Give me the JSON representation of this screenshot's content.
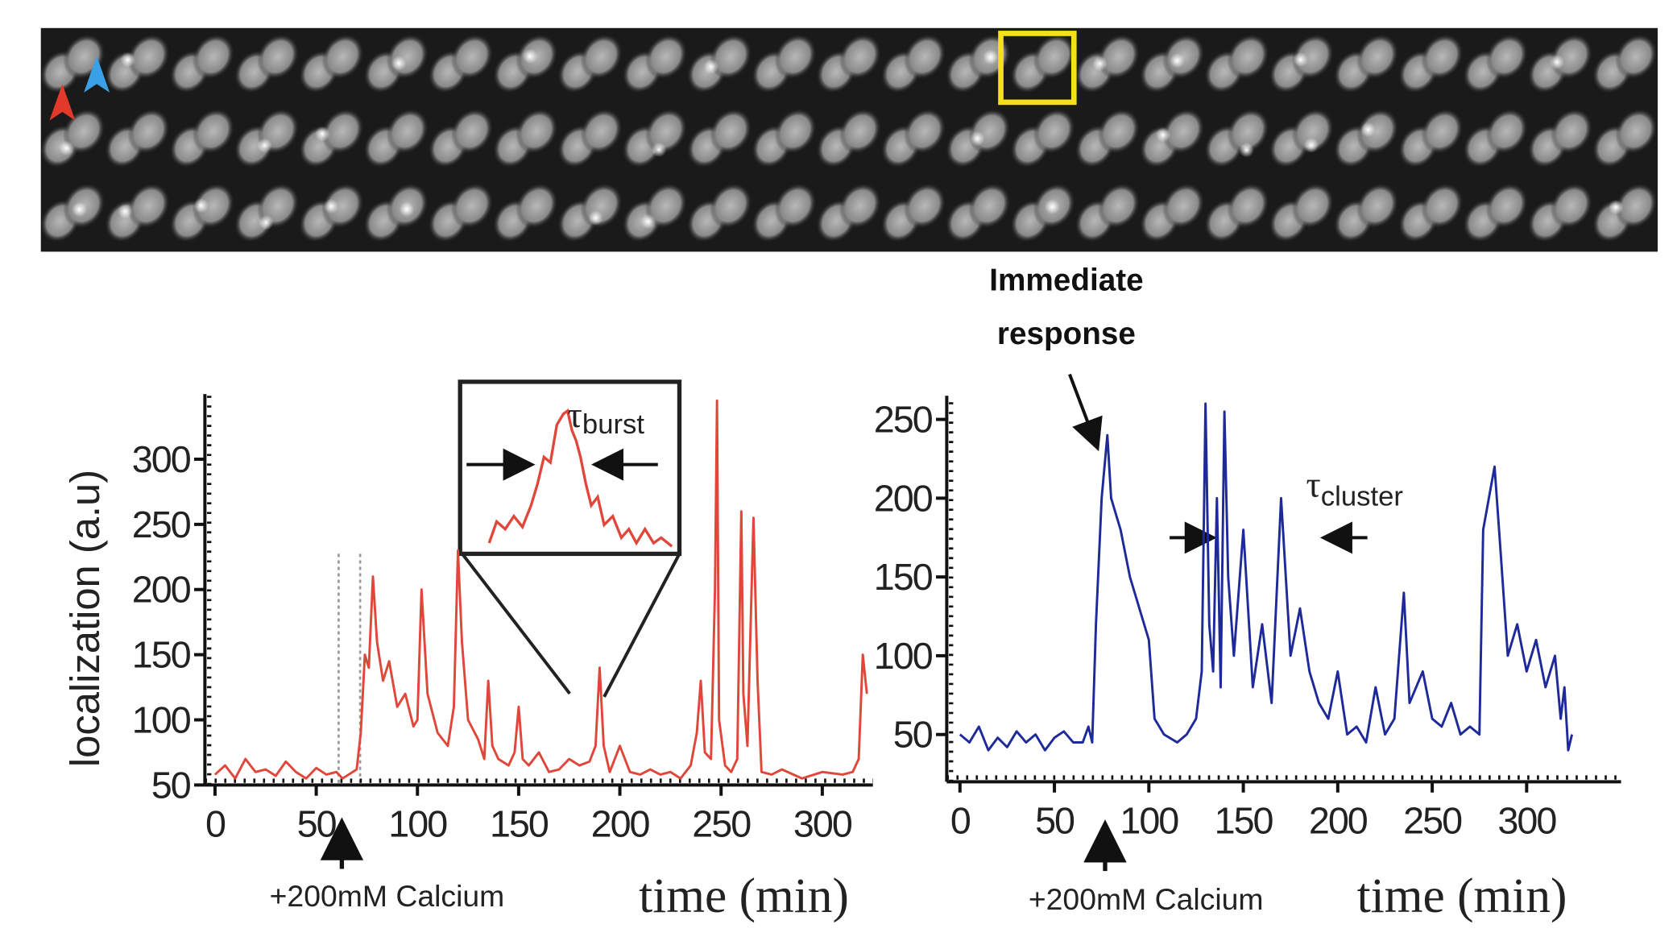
{
  "chart_data": [
    {
      "type": "line",
      "y_label": "localization (a.u)",
      "x_label": "time (min)",
      "annotation": "+200mM Calcium",
      "inset_label": {
        "symbol": "τ",
        "subscript": "burst"
      },
      "xlim": [
        -5,
        325
      ],
      "ylim": [
        50,
        350
      ],
      "xticks": [
        0,
        50,
        100,
        150,
        200,
        250,
        300
      ],
      "yticks": [
        50,
        100,
        150,
        200,
        250,
        300
      ],
      "grid": false,
      "x": [
        0,
        5,
        10,
        15,
        20,
        25,
        30,
        35,
        40,
        45,
        50,
        55,
        60,
        63,
        66,
        70,
        72,
        74,
        76,
        78,
        80,
        83,
        86,
        90,
        94,
        98,
        100,
        102,
        105,
        110,
        115,
        118,
        120,
        122,
        125,
        130,
        133,
        135,
        137,
        140,
        145,
        148,
        150,
        152,
        155,
        160,
        165,
        170,
        175,
        180,
        185,
        188,
        190,
        192,
        195,
        200,
        205,
        210,
        215,
        220,
        225,
        230,
        235,
        238,
        240,
        242,
        245,
        247,
        248,
        249,
        252,
        255,
        258,
        260,
        261,
        263,
        266,
        268,
        270,
        275,
        280,
        290,
        300,
        310,
        315,
        318,
        320,
        322
      ],
      "series": [
        {
          "color": "#e0473a",
          "values": [
            58,
            65,
            55,
            70,
            60,
            62,
            57,
            68,
            60,
            55,
            63,
            58,
            60,
            55,
            58,
            62,
            90,
            150,
            140,
            210,
            160,
            130,
            145,
            110,
            120,
            95,
            100,
            200,
            120,
            90,
            80,
            110,
            230,
            160,
            100,
            85,
            70,
            130,
            80,
            70,
            65,
            75,
            110,
            70,
            65,
            75,
            60,
            62,
            70,
            65,
            68,
            80,
            140,
            80,
            60,
            80,
            60,
            58,
            62,
            58,
            60,
            55,
            65,
            90,
            130,
            75,
            70,
            200,
            345,
            100,
            65,
            60,
            70,
            260,
            120,
            80,
            255,
            130,
            60,
            58,
            62,
            55,
            60,
            58,
            60,
            70,
            150,
            120
          ]
        }
      ]
    },
    {
      "type": "line",
      "x_label": "time (min)",
      "annotation": "+200mM Calcium",
      "callout": [
        "Immediate",
        "response"
      ],
      "inset_label": {
        "symbol": "τ",
        "subscript": "cluster"
      },
      "xlim": [
        -7,
        350
      ],
      "ylim": [
        20,
        265
      ],
      "xticks": [
        0,
        50,
        100,
        150,
        200,
        250,
        300
      ],
      "yticks": [
        50,
        100,
        150,
        200,
        250
      ],
      "grid": false,
      "x": [
        0,
        5,
        10,
        15,
        20,
        25,
        30,
        35,
        40,
        45,
        50,
        55,
        60,
        65,
        68,
        70,
        72,
        75,
        78,
        80,
        85,
        90,
        95,
        100,
        103,
        108,
        115,
        120,
        125,
        128,
        130,
        132,
        134,
        136,
        138,
        140,
        142,
        145,
        150,
        155,
        160,
        165,
        170,
        175,
        180,
        185,
        190,
        195,
        200,
        205,
        210,
        215,
        220,
        225,
        230,
        235,
        238,
        245,
        250,
        255,
        260,
        265,
        270,
        275,
        277,
        280,
        283,
        286,
        290,
        295,
        300,
        305,
        310,
        315,
        318,
        320,
        322,
        324
      ],
      "series": [
        {
          "color": "#1f2a9a",
          "values": [
            50,
            45,
            55,
            40,
            48,
            42,
            52,
            45,
            50,
            40,
            48,
            52,
            45,
            45,
            55,
            45,
            120,
            200,
            240,
            200,
            180,
            150,
            130,
            110,
            60,
            50,
            45,
            50,
            60,
            90,
            260,
            120,
            90,
            200,
            80,
            255,
            150,
            100,
            180,
            80,
            120,
            70,
            200,
            100,
            130,
            90,
            70,
            60,
            90,
            50,
            55,
            45,
            80,
            50,
            60,
            140,
            70,
            90,
            60,
            55,
            70,
            50,
            55,
            50,
            180,
            200,
            220,
            170,
            100,
            120,
            90,
            110,
            80,
            100,
            60,
            80,
            40,
            50
          ]
        }
      ]
    }
  ]
}
